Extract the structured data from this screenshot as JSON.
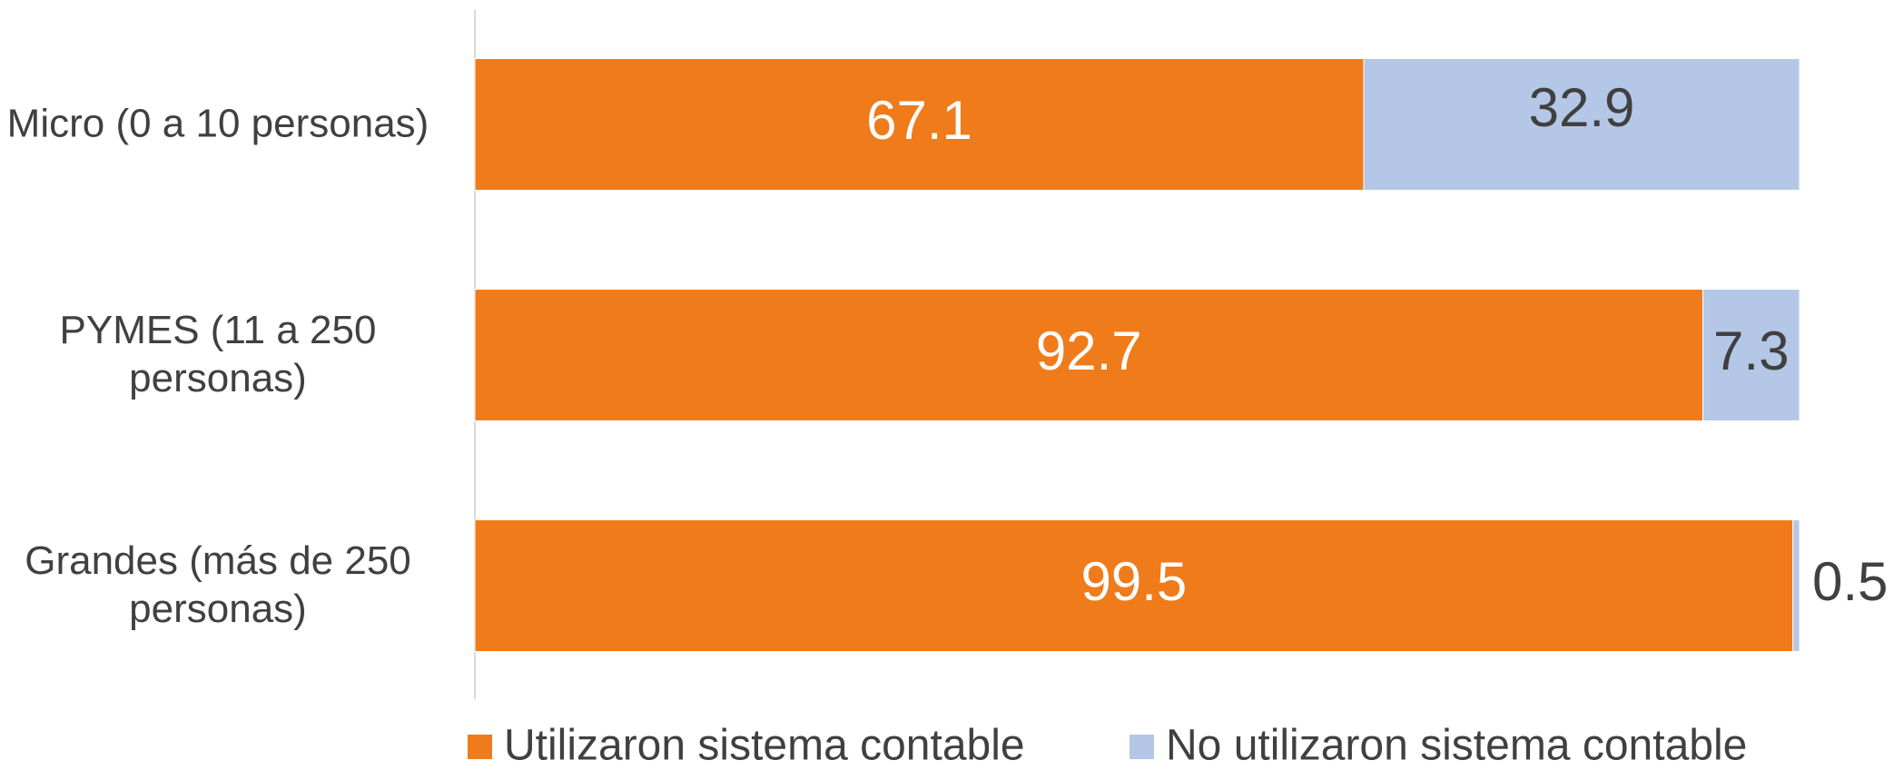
{
  "chart_data": {
    "type": "bar",
    "orientation": "horizontal",
    "stacked": true,
    "categories": [
      "Micro (0 a 10 personas)",
      "PYMES (11 a 250 personas)",
      "Grandes (más de 250 personas)"
    ],
    "series": [
      {
        "name": "Utilizaron sistema contable",
        "color": "#f07b1a",
        "values": [
          67.1,
          92.7,
          99.5
        ]
      },
      {
        "name": "No utilizaron sistema contable",
        "color": "#b4c7e7",
        "values": [
          32.9,
          7.3,
          0.5
        ]
      }
    ],
    "xlim": [
      0,
      100
    ]
  }
}
